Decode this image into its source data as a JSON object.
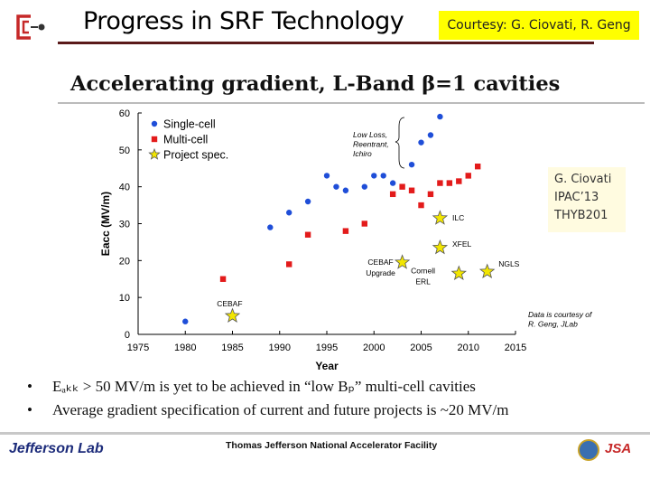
{
  "header": {
    "title": "Progress in SRF Technology",
    "courtesy": "Courtesy: G. Ciovati, R. Geng"
  },
  "chart_heading": "Accelerating gradient, L-Band β=1 cavities",
  "reference": {
    "lines": [
      "G. Ciovati",
      "IPAC’13",
      "THYB201"
    ]
  },
  "chart_data": {
    "type": "scatter",
    "title": "",
    "xlabel": "Year",
    "ylabel": "Eacc (MV/m)",
    "xlim": [
      1975,
      2015
    ],
    "ylim": [
      0,
      60
    ],
    "xticks": [
      1975,
      1980,
      1985,
      1990,
      1995,
      2000,
      2005,
      2010,
      2015
    ],
    "yticks": [
      0,
      10,
      20,
      30,
      40,
      50,
      60
    ],
    "legend_position": "top-left",
    "series": [
      {
        "name": "Single-cell",
        "marker": "circle",
        "color": "#1f4ed8",
        "points": [
          [
            1980,
            3.5
          ],
          [
            1989,
            29
          ],
          [
            1991,
            33
          ],
          [
            1993,
            36
          ],
          [
            1995,
            43
          ],
          [
            1996,
            40
          ],
          [
            1997,
            39
          ],
          [
            1999,
            40
          ],
          [
            2000,
            43
          ],
          [
            2001,
            43
          ],
          [
            2002,
            41
          ],
          [
            2004,
            46
          ],
          [
            2005,
            52
          ],
          [
            2006,
            54
          ],
          [
            2007,
            59
          ]
        ]
      },
      {
        "name": "Multi-cell",
        "marker": "square",
        "color": "#e31b1b",
        "points": [
          [
            1984,
            15
          ],
          [
            1991,
            19
          ],
          [
            1993,
            27
          ],
          [
            1997,
            28
          ],
          [
            1999,
            30
          ],
          [
            2002,
            38
          ],
          [
            2003,
            40
          ],
          [
            2004,
            39
          ],
          [
            2005,
            35
          ],
          [
            2006,
            38
          ],
          [
            2007,
            41
          ],
          [
            2008,
            41
          ],
          [
            2009,
            41.5
          ],
          [
            2010,
            43
          ],
          [
            2011,
            45.5
          ]
        ]
      },
      {
        "name": "Project spec.",
        "marker": "star",
        "color": "#f2e600",
        "points": [
          [
            1985,
            5
          ],
          [
            2003,
            19.5
          ],
          [
            2007,
            31.5
          ],
          [
            2007,
            23.5
          ],
          [
            2009,
            16.5
          ],
          [
            2012,
            17
          ]
        ]
      }
    ],
    "annotations": [
      {
        "text": "CEBAF",
        "x": 1984.7,
        "y": 7.6
      },
      {
        "text": "CEBAF",
        "x": 2000.7,
        "y": 18.9
      },
      {
        "text": "Upgrade",
        "x": 2000.7,
        "y": 15.9
      },
      {
        "text": "ILC",
        "x": 2008.3,
        "y": 30.8
      },
      {
        "text": "XFEL",
        "x": 2008.3,
        "y": 23.8
      },
      {
        "text": "Cornell",
        "x": 2005.2,
        "y": 16.5
      },
      {
        "text": "ERL",
        "x": 2005.2,
        "y": 13.6
      },
      {
        "text": "NGLS",
        "x": 2013.2,
        "y": 18.4
      }
    ],
    "bracket_note": [
      "Low Loss,",
      "Reentrant,",
      "Ichiro"
    ],
    "source_note": [
      "Data is courtesy of",
      "R. Geng, JLab"
    ]
  },
  "bullets": [
    "Eₐₖₖ > 50 MV/m is yet to be achieved in “low Bₚ” multi-cell cavities",
    "Average gradient specification of current and future projects is ~20 MV/m"
  ],
  "footer": {
    "org": "Jefferson Lab",
    "facility": "Thomas Jefferson National Accelerator Facility",
    "partner": "JSA"
  },
  "colors": {
    "accent": "#5a1a1a",
    "highlight": "#ffff00",
    "single": "#1f4ed8",
    "multi": "#e31b1b",
    "star": "#f2e600"
  }
}
